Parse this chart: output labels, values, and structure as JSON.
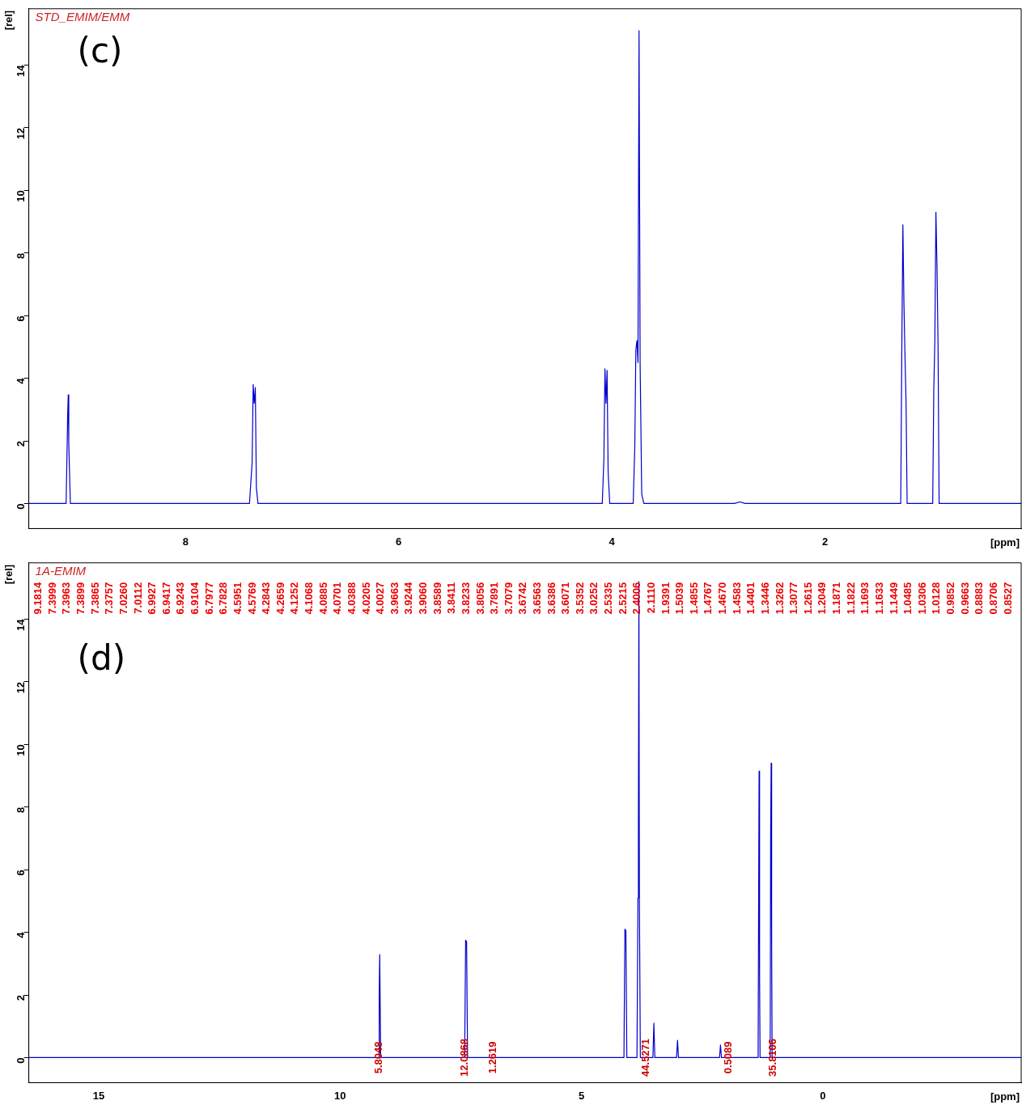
{
  "chart_data": [
    {
      "type": "line",
      "title": "STD_EMIM/EMM",
      "subtitle": "(c)",
      "xlabel": "[ppm]",
      "ylabel": "[rel]",
      "xlim": [
        9.47,
        0.16
      ],
      "xticks": [
        8,
        6,
        4,
        2
      ],
      "ylim": [
        -0.8,
        15.8
      ],
      "yticks": [
        0,
        2,
        4,
        6,
        8,
        10,
        12,
        14
      ],
      "grid": false,
      "legend": false,
      "marker": "none",
      "series": [
        {
          "color": "#0000cc",
          "x": [
            9.47,
            9.12,
            9.105,
            9.1,
            9.095,
            9.08,
            7.4,
            7.375,
            7.365,
            7.355,
            7.345,
            7.335,
            7.32,
            4.09,
            4.075,
            4.065,
            4.055,
            4.045,
            4.035,
            4.02,
            3.8,
            3.785,
            3.775,
            3.765,
            3.755,
            3.745,
            3.735,
            3.72,
            3.7,
            2.85,
            2.8,
            2.75,
            1.29,
            1.28,
            1.27,
            1.26,
            1.25,
            1.24,
            1.23,
            0.99,
            0.98,
            0.97,
            0.96,
            0.95,
            0.94,
            0.93,
            0.16
          ],
          "values": [
            0,
            0,
            2.9,
            3.47,
            1.9,
            0,
            0,
            1.3,
            3.8,
            3.2,
            3.7,
            0.5,
            0,
            0,
            1.4,
            4.3,
            3.2,
            4.25,
            1.0,
            0,
            0,
            1.8,
            4.9,
            5.2,
            4.5,
            15.1,
            4.5,
            0.3,
            0,
            0,
            0.05,
            0,
            0,
            4.9,
            8.9,
            6.4,
            4.7,
            3.2,
            0,
            0,
            3.6,
            5.2,
            9.3,
            7.6,
            5.1,
            0,
            0
          ]
        }
      ]
    },
    {
      "type": "line",
      "title": "1A-EMIM",
      "subtitle": "(d)",
      "xlabel": "[ppm]",
      "ylabel": "[rel]",
      "xlim": [
        16.45,
        -4.11
      ],
      "xticks": [
        15,
        10,
        5,
        0
      ],
      "ylim": [
        -0.8,
        15.8
      ],
      "yticks": [
        0,
        2,
        4,
        6,
        8,
        10,
        12,
        14
      ],
      "grid": false,
      "legend": false,
      "marker": "none",
      "series": [
        {
          "color": "#0000cc",
          "x": [
            16.45,
            9.2,
            9.19,
            9.18,
            9.16,
            7.42,
            7.4,
            7.38,
            7.36,
            4.55,
            4.12,
            4.1,
            4.08,
            4.06,
            3.85,
            3.83,
            3.82,
            3.81,
            3.8,
            3.78,
            3.52,
            3.5,
            3.48,
            3.03,
            3.01,
            2.99,
            2.14,
            2.12,
            2.1,
            1.34,
            1.33,
            1.32,
            1.31,
            1.3,
            1.09,
            1.08,
            1.07,
            1.06,
            1.05,
            -4.11
          ],
          "values": [
            0,
            0,
            2.0,
            3.29,
            0,
            0,
            3.75,
            3.7,
            0,
            0,
            0,
            4.1,
            4.05,
            0,
            0,
            5.1,
            7.6,
            15.2,
            5.0,
            0,
            0,
            1.1,
            0,
            0,
            0.55,
            0,
            0,
            0.4,
            0,
            0,
            4.8,
            9.15,
            2.6,
            0,
            0,
            7.3,
            9.4,
            3.6,
            0,
            0
          ]
        }
      ],
      "annotations": [
        "9.1814",
        "7.3999",
        "7.3963",
        "7.3899",
        "7.3865",
        "7.3757",
        "7.0260",
        "7.0112",
        "6.9927",
        "6.9417",
        "6.9243",
        "6.9104",
        "6.7977",
        "6.7828",
        "4.5951",
        "4.5769",
        "4.2843",
        "4.2659",
        "4.1252",
        "4.1068",
        "4.0885",
        "4.0701",
        "4.0388",
        "4.0205",
        "4.0027",
        "3.9663",
        "3.9244",
        "3.9060",
        "3.8589",
        "3.8411",
        "3.8233",
        "3.8056",
        "3.7891",
        "3.7079",
        "3.6742",
        "3.6563",
        "3.6386",
        "3.6071",
        "3.5352",
        "3.0252",
        "2.5335",
        "2.5215",
        "2.4006",
        "2.1110",
        "1.9391",
        "1.5039",
        "1.4855",
        "1.4767",
        "1.4670",
        "1.4583",
        "1.4401",
        "1.3446",
        "1.3262",
        "1.3077",
        "1.2615",
        "1.2049",
        "1.1871",
        "1.1822",
        "1.1693",
        "1.1633",
        "1.1449",
        "1.0485",
        "1.0306",
        "1.0128",
        "0.9852",
        "0.9663",
        "0.8883",
        "0.8706",
        "0.8527",
        {
          "text": "5.8048",
          "x": 9.2,
          "y": 0
        },
        {
          "text": "12.0868",
          "x": 7.41,
          "y": 0
        },
        {
          "text": "1.2619",
          "x": 6.83,
          "y": 0
        },
        {
          "text": "44.5271",
          "x": 3.67,
          "y": 0
        },
        {
          "text": "0.5089",
          "x": 1.95,
          "y": 0
        },
        {
          "text": "35.8106",
          "x": 1.03,
          "y": 0
        }
      ]
    }
  ]
}
